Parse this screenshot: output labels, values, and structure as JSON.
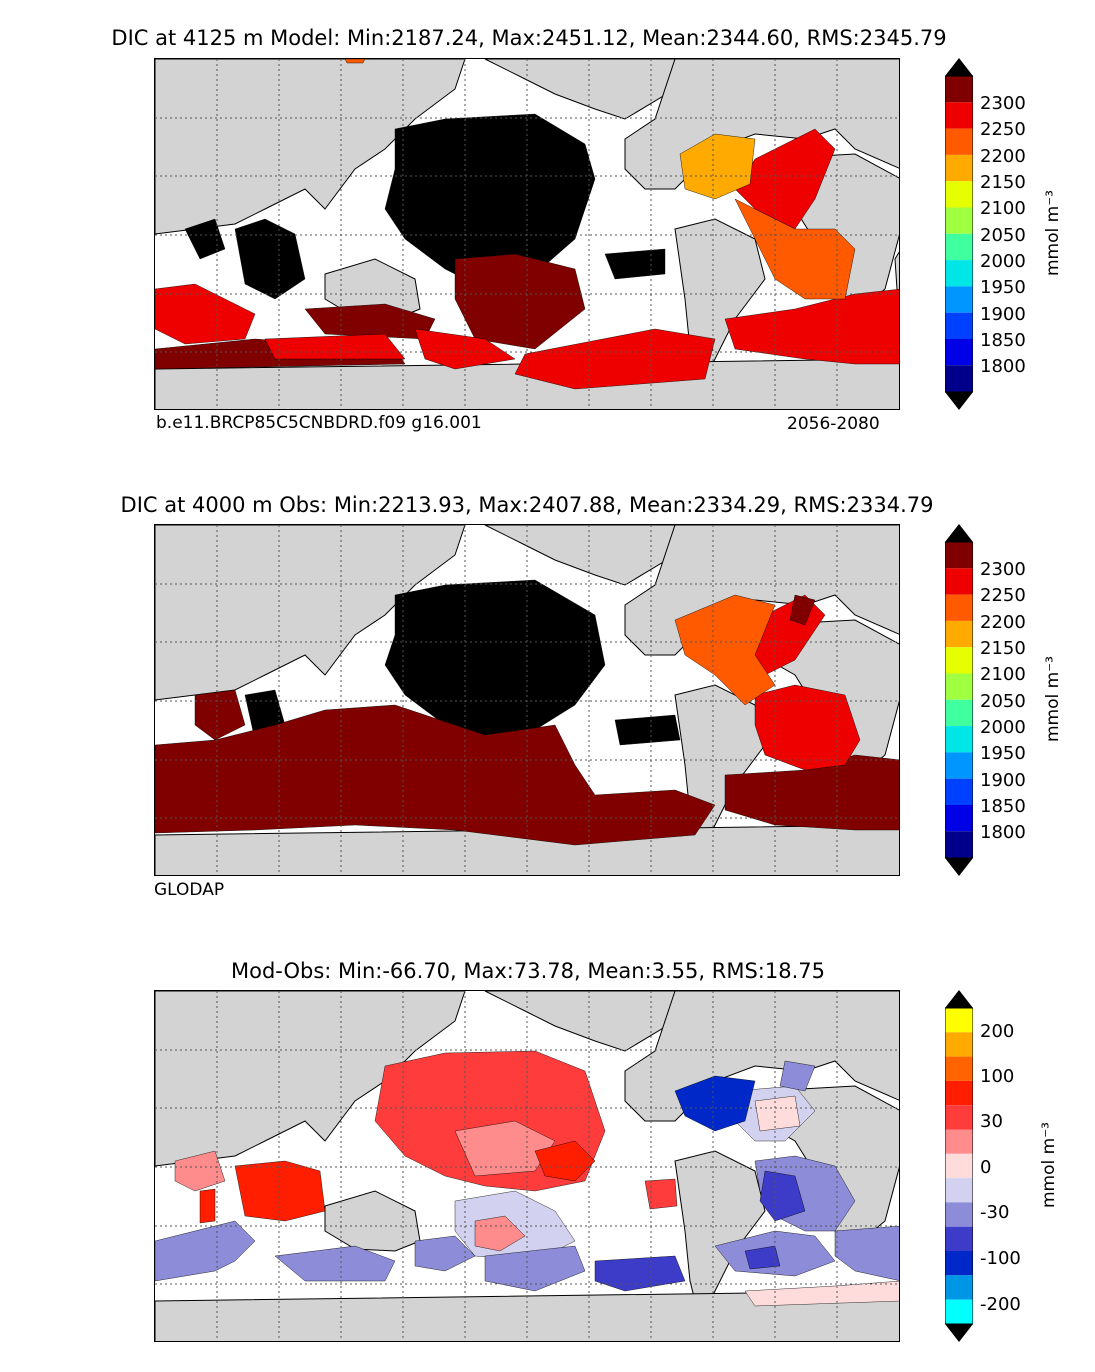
{
  "panels": [
    {
      "title": "DIC at 4125 m Model: Min:2187.24, Max:2451.12, Mean:2344.60, RMS:2345.79",
      "case_label": "b.e11.BRCP85C5CNBDRD.f09 g16.001",
      "years_label": "2056-2080",
      "colorbar_ticks": [
        "2300",
        "2250",
        "2200",
        "2150",
        "2100",
        "2050",
        "2000",
        "1950",
        "1900",
        "1850",
        "1800"
      ],
      "colorbar_unit": "mmol m⁻³"
    },
    {
      "title": "DIC at 4000 m Obs: Min:2213.93, Max:2407.88, Mean:2334.29, RMS:2334.79",
      "source_label": "GLODAP",
      "colorbar_ticks": [
        "2300",
        "2250",
        "2200",
        "2150",
        "2100",
        "2050",
        "2000",
        "1950",
        "1900",
        "1850",
        "1800"
      ],
      "colorbar_unit": "mmol m⁻³"
    },
    {
      "title": "Mod-Obs: Min:-66.70, Max:73.78, Mean:3.55, RMS:18.75",
      "colorbar_ticks": [
        "200",
        "100",
        "30",
        "0",
        "-30",
        "-100",
        "-200"
      ],
      "colorbar_unit": "mmol m⁻³"
    }
  ],
  "colors": {
    "land": "#d3d3d3",
    "ocean_nodata": "#ffffff",
    "abs_scale": [
      "#00008b",
      "#0000e6",
      "#0040ff",
      "#0096ff",
      "#00e6e6",
      "#40ff9f",
      "#9fff40",
      "#e6ff00",
      "#ffaa00",
      "#ff5a00",
      "#ee0000",
      "#800000"
    ],
    "diff_scale": [
      "#00ffff",
      "#0096e6",
      "#0028c8",
      "#3c3cc8",
      "#8c8cd8",
      "#d2d2f0",
      "#ffdcdc",
      "#ff8c8c",
      "#ff3c3c",
      "#ff1e00",
      "#ff6400",
      "#ffaa00",
      "#ffff00"
    ]
  }
}
